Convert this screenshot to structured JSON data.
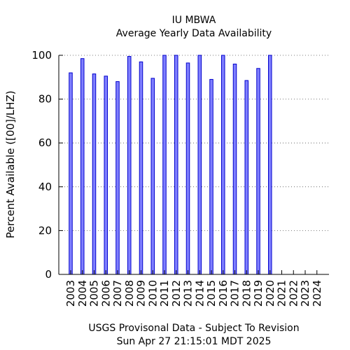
{
  "chart_data": {
    "type": "bar",
    "title_line1": "IU MBWA",
    "title_line2": "Average Yearly Data Availability",
    "ylabel": "Percent Available ([00]/LHZ)",
    "xlabel_line1": "USGS Provisonal Data - Subject To Revision",
    "xlabel_line2": "Sun Apr 27 21:15:01 MDT 2025",
    "ylim": [
      0,
      100
    ],
    "yticks": [
      0,
      20,
      40,
      60,
      80,
      100
    ],
    "grid": "horizontal dotted",
    "bar_color": "#8080ff",
    "bar_edge_color": "#0000cc",
    "categories": [
      "2003",
      "2004",
      "2005",
      "2006",
      "2007",
      "2008",
      "2009",
      "2010",
      "2011",
      "2012",
      "2013",
      "2014",
      "2015",
      "2016",
      "2017",
      "2018",
      "2019",
      "2020",
      "2021",
      "2022",
      "2023",
      "2024"
    ],
    "values": [
      92,
      98.5,
      91.5,
      90.5,
      88,
      99.5,
      97,
      89.5,
      100,
      100,
      96.5,
      100,
      89,
      100,
      96,
      88.5,
      94,
      100,
      null,
      null,
      null,
      null
    ]
  }
}
